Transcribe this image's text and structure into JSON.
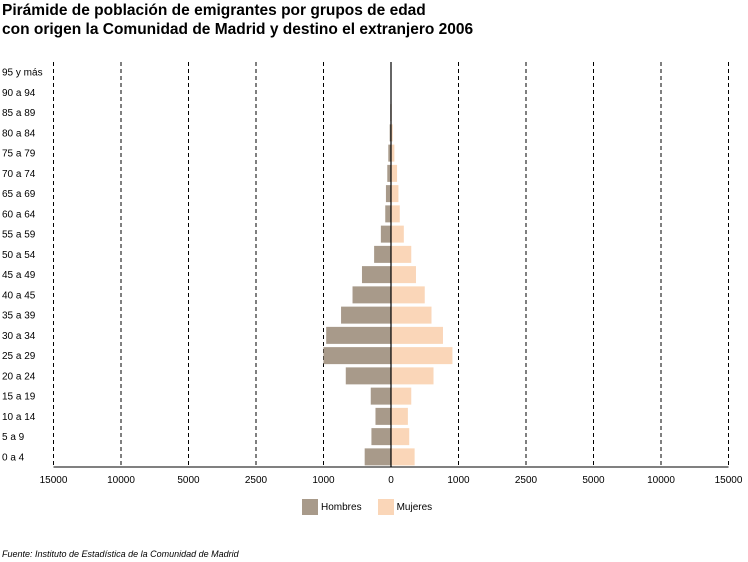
{
  "chart_data": {
    "type": "bar",
    "orientation": "horizontal-pyramid",
    "title_lines": [
      "Pirámide de población de emigrantes por grupos de edad",
      "con origen la Comunidad de Madrid y destino el extranjero 2006"
    ],
    "categories": [
      "95 y más",
      "90 a 94",
      "85 a 89",
      "80 a 84",
      "75 a 79",
      "70 a 74",
      "65 a 69",
      "60 a 64",
      "55 a 59",
      "50 a 54",
      "45 a 49",
      "40 a 45",
      "35 a 39",
      "30 a 34",
      "25 a 29",
      "20 a 24",
      "15 a 19",
      "10 a 14",
      "5 a 9",
      "0 a 4"
    ],
    "series": [
      {
        "name": "Hombres",
        "color": "#a89a8a",
        "values": [
          0,
          0,
          10,
          20,
          40,
          55,
          75,
          85,
          150,
          250,
          430,
          570,
          740,
          960,
          1000,
          670,
          300,
          230,
          290,
          390
        ]
      },
      {
        "name": "Mujeres",
        "color": "#fad6b8",
        "values": [
          0,
          0,
          10,
          25,
          50,
          90,
          110,
          130,
          190,
          300,
          370,
          500,
          600,
          770,
          910,
          630,
          300,
          250,
          270,
          350
        ]
      }
    ],
    "x_tick_labels": [
      "15000",
      "10000",
      "5000",
      "2500",
      "1000",
      "0",
      "1000",
      "2500",
      "5000",
      "10000",
      "15000"
    ],
    "legend_position": "bottom"
  },
  "source_text": "Fuente: Instituto de Estadística de la Comunidad de Madrid",
  "colors": {
    "grid": "#000000",
    "axis": "#000000"
  }
}
